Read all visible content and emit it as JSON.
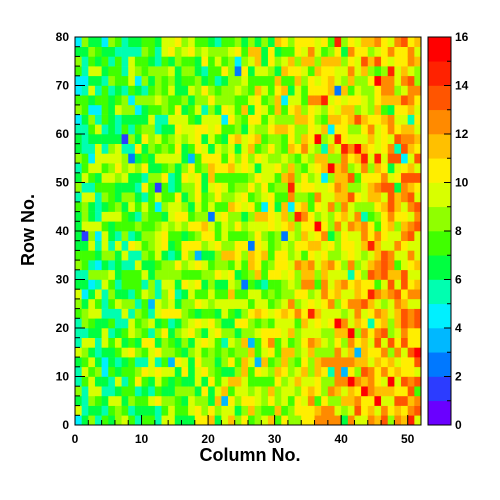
{
  "chart_data": {
    "type": "heatmap",
    "title": "",
    "xlabel": "Column No.",
    "ylabel": "Row No.",
    "xlim": [
      0,
      52
    ],
    "ylim": [
      0,
      80
    ],
    "zlim": [
      0,
      16
    ],
    "x_ticks": [
      "0",
      "10",
      "20",
      "30",
      "40",
      "50"
    ],
    "y_ticks": [
      "0",
      "10",
      "20",
      "30",
      "40",
      "50",
      "60",
      "70",
      "80"
    ],
    "z_ticks": [
      "0",
      "2",
      "4",
      "6",
      "8",
      "10",
      "12",
      "14",
      "16"
    ],
    "grid": false,
    "colorbar": "right",
    "colormap": [
      "#6a00ff",
      "#2c3cff",
      "#0078ff",
      "#00b8ff",
      "#00f0ff",
      "#00ffb0",
      "#00ff40",
      "#40ff00",
      "#90ff00",
      "#d8ff00",
      "#ffee00",
      "#ffc000",
      "#ff8a00",
      "#ff5500",
      "#ff2200",
      "#ff0000"
    ],
    "n_columns": 52,
    "n_rows": 80,
    "row_bin_width": 2,
    "values_description": "Cell values 0-16; lower on the left (~6-9), higher on the right (~10-13), with sparse low outliers near the bottom rows."
  }
}
